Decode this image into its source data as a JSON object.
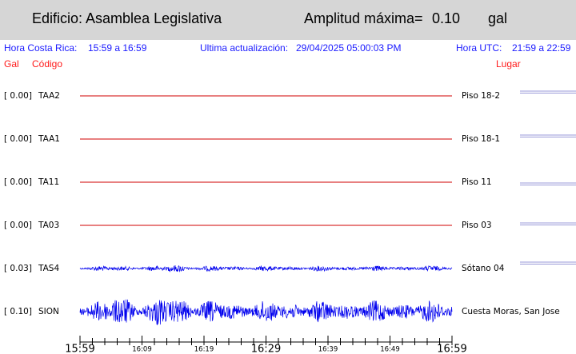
{
  "header": {
    "building": "Edificio: Asamblea Legislativa",
    "max_amplitude_label": "Amplitud máxima=",
    "max_amplitude": "0.10",
    "unit": "gal"
  },
  "info": {
    "local_time_label": "Hora Costa Rica:",
    "local_time": "15:59 a 16:59",
    "updated_label": "Ultima actualización:",
    "updated": "29/04/2025 05:00:03 PM",
    "utc_label": "Hora UTC:",
    "utc_time": "21:59 a 22:59"
  },
  "columns": {
    "gal": "Gal",
    "code": "Código",
    "place": "Lugar"
  },
  "channels": [
    {
      "amplitude": "[  0.00]",
      "code": "TAA2",
      "place": "Piso 18-2"
    },
    {
      "amplitude": "[  0.00]",
      "code": "TAA1",
      "place": "Piso 18-1"
    },
    {
      "amplitude": "[  0.00]",
      "code": "TA11",
      "place": "Piso 11"
    },
    {
      "amplitude": "[  0.00]",
      "code": "TA03",
      "place": "Piso 03"
    },
    {
      "amplitude": "[  0.03]",
      "code": "TAS4",
      "place": "Sótano 04"
    },
    {
      "amplitude": "[  0.10]",
      "code": "SION",
      "place": "Cuesta Moras, San Jose"
    }
  ],
  "time_axis": [
    "15:59",
    "16:09",
    "16:19",
    "16:29",
    "16:39",
    "16:49",
    "16:59"
  ]
}
